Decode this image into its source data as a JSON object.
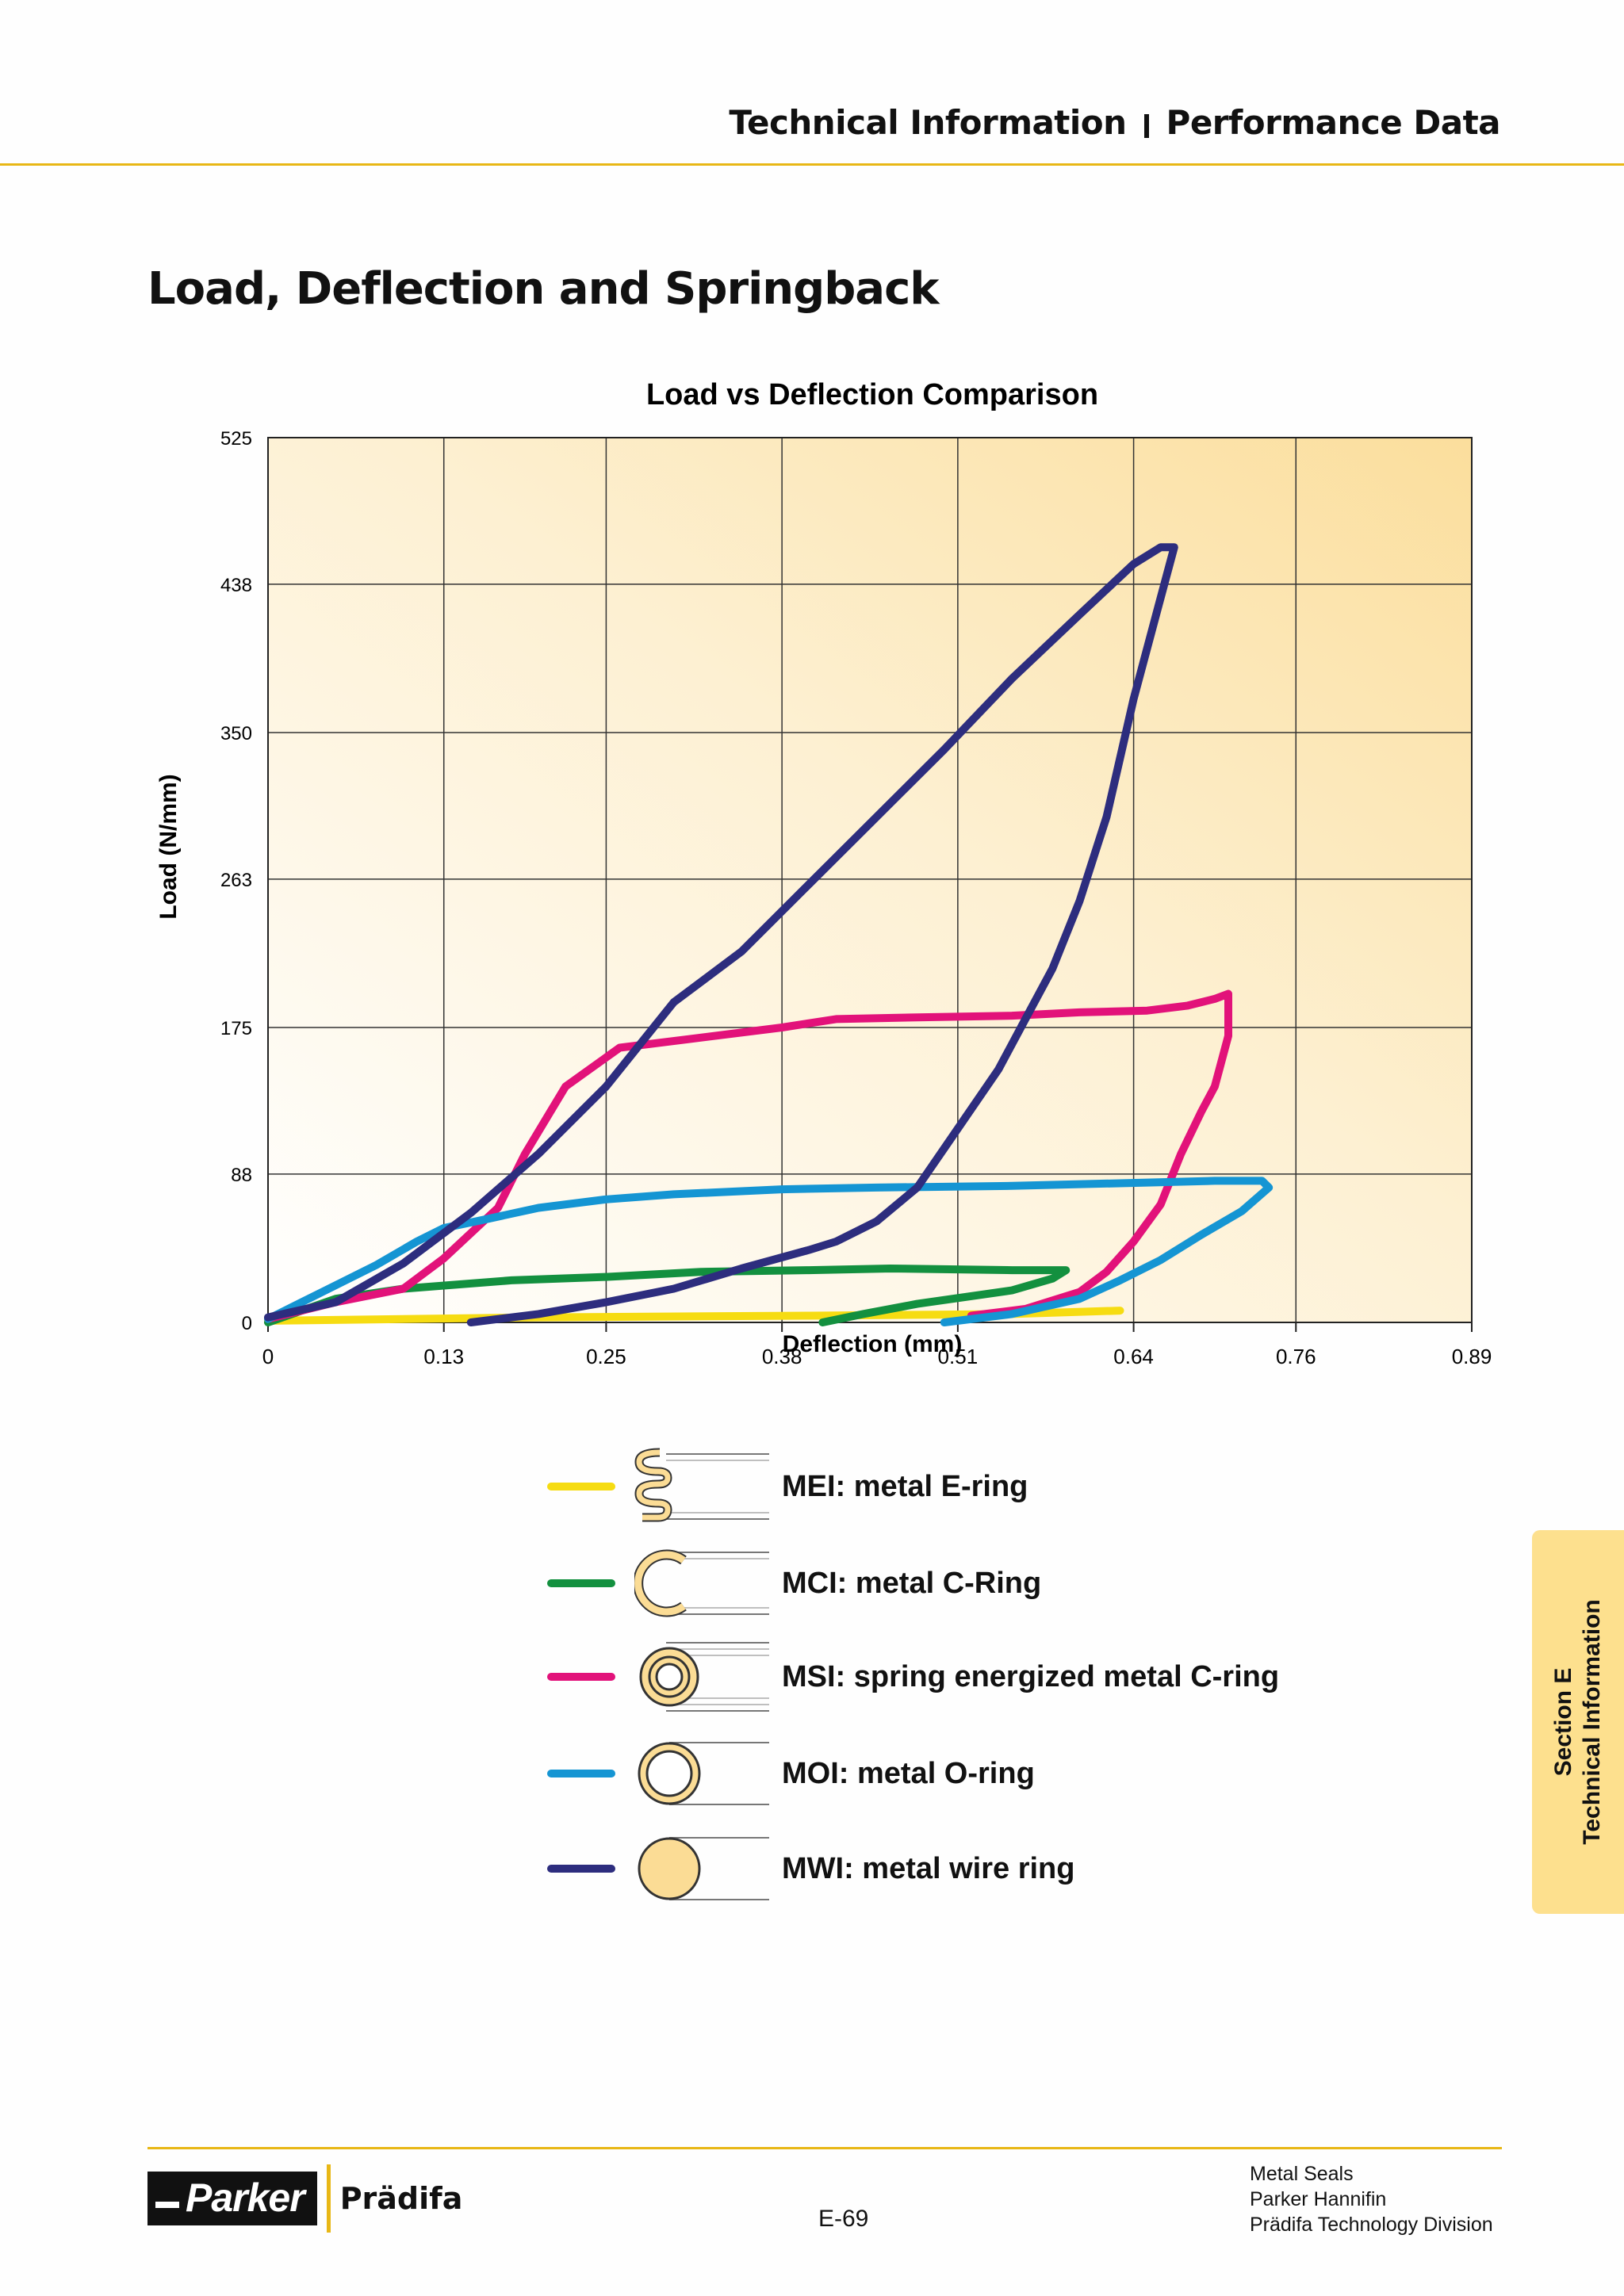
{
  "header": {
    "left": "Technical Information",
    "right": "Performance Data"
  },
  "page_title": "Load, Deflection and Springback",
  "chart_data": {
    "type": "line",
    "title": "Load vs Deflection Comparison",
    "xlabel": "Deflection (mm)",
    "ylabel": "Load (N/mm)",
    "xlim": [
      0,
      0.89
    ],
    "ylim": [
      0,
      525
    ],
    "x_ticks": [
      0,
      0.13,
      0.25,
      0.38,
      0.51,
      0.64,
      0.76,
      0.89
    ],
    "x_tick_labels": [
      "0",
      "0.13",
      "0.25",
      "0.38",
      "0.51",
      "0.64",
      "0.76",
      "0.89"
    ],
    "y_ticks": [
      0,
      88,
      175,
      263,
      350,
      438,
      525
    ],
    "y_tick_labels": [
      "0",
      "88",
      "175",
      "263",
      "350",
      "438",
      "525"
    ],
    "grid": true,
    "series": [
      {
        "name": "MEI: metal E-ring",
        "color": "#f6dc12",
        "x": [
          0,
          0.2,
          0.4,
          0.55,
          0.63
        ],
        "y": [
          1,
          3,
          4,
          5,
          7
        ]
      },
      {
        "name": "MCI: metal C-Ring",
        "color": "#13903f",
        "x": [
          0,
          0.05,
          0.1,
          0.18,
          0.25,
          0.32,
          0.4,
          0.46,
          0.55,
          0.59,
          0.58,
          0.55,
          0.48,
          0.44,
          0.41
        ],
        "y": [
          0,
          14,
          20,
          25,
          27,
          30,
          31,
          32,
          31,
          31,
          26,
          19,
          11,
          5,
          0
        ]
      },
      {
        "name": "MSI: spring energized metal C-ring",
        "color": "#e2127a",
        "x": [
          0,
          0.05,
          0.1,
          0.13,
          0.17,
          0.19,
          0.22,
          0.26,
          0.31,
          0.38,
          0.42,
          0.48,
          0.55,
          0.6,
          0.65,
          0.68,
          0.7,
          0.71,
          0.71,
          0.7,
          0.69,
          0.675,
          0.66,
          0.64,
          0.62,
          0.6,
          0.56,
          0.52
        ],
        "y": [
          2,
          12,
          20,
          38,
          68,
          100,
          140,
          163,
          168,
          175,
          180,
          181,
          182,
          184,
          185,
          188,
          192,
          195,
          170,
          140,
          125,
          100,
          70,
          48,
          30,
          18,
          8,
          4
        ]
      },
      {
        "name": "MOI: metal O-ring",
        "color": "#1595d3",
        "x": [
          0,
          0.04,
          0.08,
          0.11,
          0.13,
          0.16,
          0.2,
          0.25,
          0.3,
          0.38,
          0.45,
          0.55,
          0.65,
          0.7,
          0.735,
          0.74,
          0.72,
          0.69,
          0.66,
          0.63,
          0.6,
          0.55,
          0.5
        ],
        "y": [
          2,
          18,
          34,
          48,
          56,
          61,
          68,
          73,
          76,
          79,
          80,
          81,
          83,
          84,
          84,
          80,
          66,
          52,
          37,
          25,
          14,
          5,
          0
        ]
      },
      {
        "name": "MWI: metal wire ring",
        "color": "#2d2d7e",
        "x": [
          0,
          0.05,
          0.1,
          0.15,
          0.2,
          0.25,
          0.3,
          0.35,
          0.4,
          0.45,
          0.5,
          0.55,
          0.6,
          0.64,
          0.66,
          0.67,
          0.66,
          0.64,
          0.62,
          0.6,
          0.58,
          0.56,
          0.54,
          0.51,
          0.48,
          0.45,
          0.42,
          0.4,
          0.35,
          0.3,
          0.25,
          0.2,
          0.15
        ],
        "y": [
          3,
          12,
          35,
          65,
          100,
          140,
          190,
          220,
          260,
          300,
          340,
          382,
          420,
          450,
          460,
          460,
          430,
          370,
          300,
          250,
          210,
          180,
          150,
          115,
          80,
          60,
          48,
          43,
          32,
          20,
          12,
          5,
          0
        ]
      }
    ]
  },
  "legend": [
    {
      "label": "MEI: metal E-ring",
      "color": "#f6dc12",
      "icon": "e-ring-icon"
    },
    {
      "label": "MCI: metal C-Ring",
      "color": "#13903f",
      "icon": "c-ring-icon"
    },
    {
      "label": "MSI: spring energized metal C-ring",
      "color": "#e2127a",
      "icon": "spring-c-ring-icon"
    },
    {
      "label": "MOI: metal O-ring",
      "color": "#1595d3",
      "icon": "o-ring-icon"
    },
    {
      "label": "MWI: metal wire ring",
      "color": "#2d2d7e",
      "icon": "wire-ring-icon"
    }
  ],
  "side_tab": {
    "line1": "Section E",
    "line2": "Technical Information"
  },
  "footer": {
    "logo_text": "Parker",
    "logo_sub": "Prädifa",
    "page_number": "E-69",
    "info_lines": [
      "Metal Seals",
      "Parker Hannifin",
      "Prädifa Technology Division"
    ]
  }
}
